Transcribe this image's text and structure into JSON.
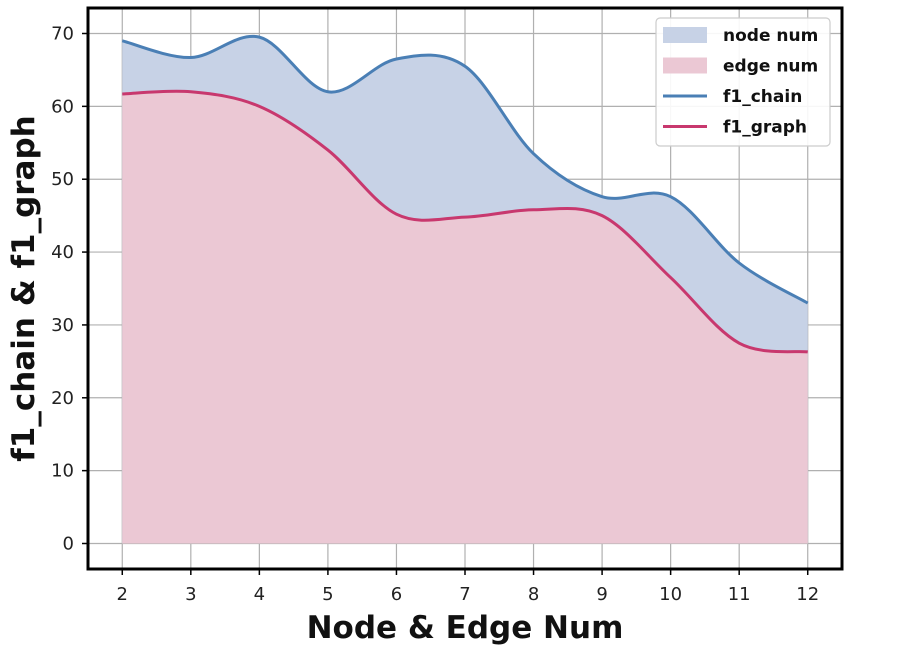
{
  "chart_data": {
    "type": "area",
    "x": [
      2,
      3,
      4,
      5,
      6,
      7,
      8,
      9,
      10,
      11,
      12
    ],
    "series": [
      {
        "name": "f1_chain",
        "kind": "line",
        "color": "#4a7fb5",
        "values": [
          69.0,
          66.7,
          69.5,
          62.0,
          66.5,
          65.5,
          53.5,
          47.6,
          47.6,
          38.5,
          33.0
        ]
      },
      {
        "name": "f1_graph",
        "kind": "line",
        "color": "#c8386e",
        "values": [
          61.7,
          62.0,
          60.0,
          54.0,
          45.2,
          44.8,
          45.8,
          45.0,
          36.5,
          27.5,
          26.3
        ]
      },
      {
        "name": "node num",
        "kind": "area",
        "color": "#c7d2e6"
      },
      {
        "name": "edge num",
        "kind": "area",
        "color": "#ebc8d4"
      }
    ],
    "xlabel": "Node & Edge Num",
    "ylabel": "f1_chain & f1_graph",
    "xticks": [
      2,
      3,
      4,
      5,
      6,
      7,
      8,
      9,
      10,
      11,
      12
    ],
    "yticks": [
      0,
      10,
      20,
      30,
      40,
      50,
      60,
      70
    ],
    "xlim": [
      1.5,
      12.5
    ],
    "ylim": [
      -3.5,
      73.5
    ],
    "grid": true,
    "legend": {
      "position": "top-right",
      "entries": [
        {
          "label": "node num",
          "type": "patch",
          "color": "#c7d2e6"
        },
        {
          "label": "edge num",
          "type": "patch",
          "color": "#ebc8d4"
        },
        {
          "label": "f1_chain",
          "type": "line",
          "color": "#4a7fb5"
        },
        {
          "label": "f1_graph",
          "type": "line",
          "color": "#c8386e"
        }
      ]
    }
  }
}
